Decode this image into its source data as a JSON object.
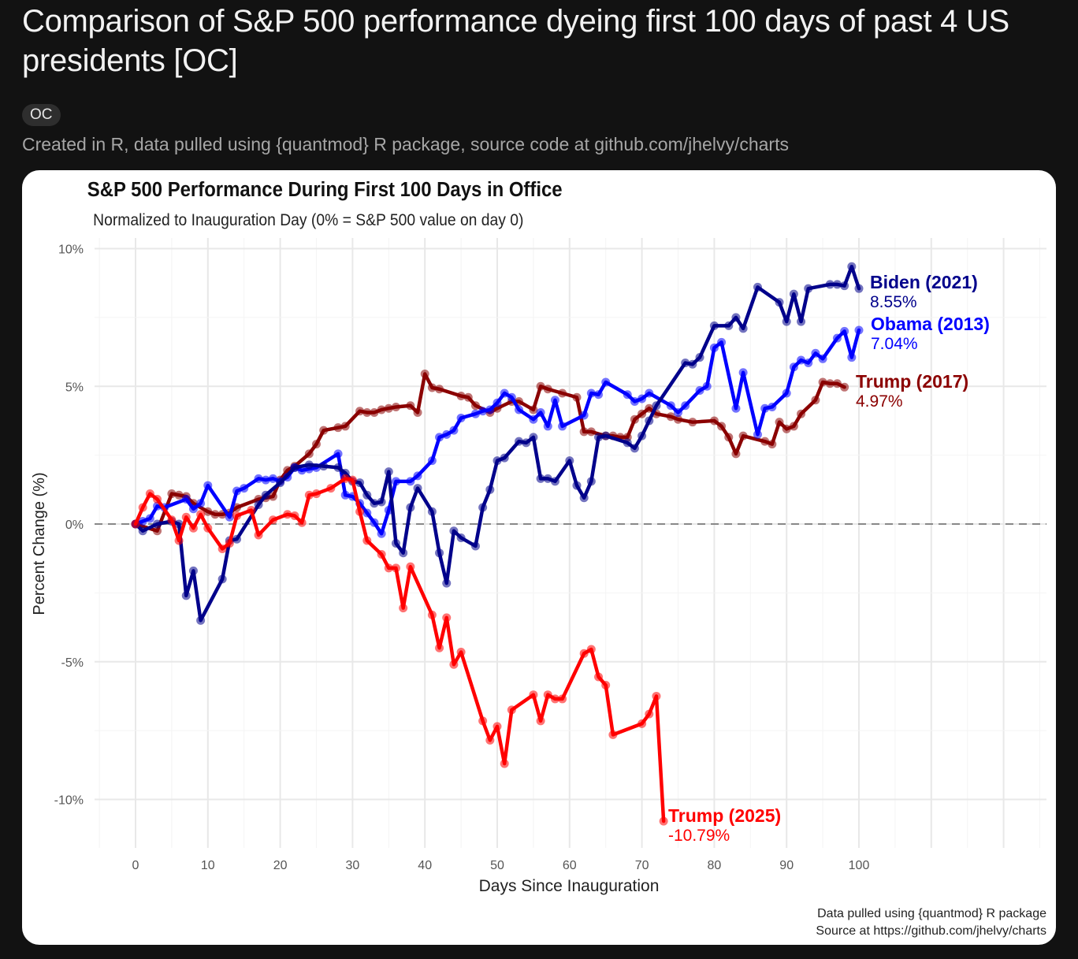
{
  "post": {
    "title": "Comparison of S&P 500 performance dyeing first 100 days of past 4 US presidents [OC]",
    "flair": "OC",
    "body": "Created in R, data pulled using {quantmod} R package, source code at github.com/jhelvy/charts"
  },
  "chart_data": {
    "type": "line",
    "title": "S&P 500 Performance During First 100 Days in Office",
    "subtitle": "Normalized to Inauguration Day (0% = S&P 500 value on day 0)",
    "xlabel": "Days Since Inauguration",
    "ylabel": "Percent Change (%)",
    "xlim": [
      0,
      100
    ],
    "ylim": [
      -12,
      10.5
    ],
    "xticks": [
      0,
      10,
      20,
      30,
      40,
      50,
      60,
      70,
      80,
      90,
      100
    ],
    "yticks": [
      {
        "v": 10,
        "label": "10%"
      },
      {
        "v": 5,
        "label": "5%"
      },
      {
        "v": 0,
        "label": "0%"
      },
      {
        "v": -5,
        "label": "-5%"
      },
      {
        "v": -10,
        "label": "-10%"
      }
    ],
    "grid": true,
    "reference_line": 0,
    "caption": [
      "Data pulled using {quantmod} R package",
      "Source at https://github.com/jhelvy/charts"
    ],
    "series": [
      {
        "name": "Trump (2017)",
        "final": "4.97%",
        "color": "#8B0000",
        "x": [
          0,
          3,
          5,
          6,
          7,
          8,
          10,
          11,
          12,
          13,
          14,
          17,
          18,
          19,
          20,
          21,
          22,
          24,
          25,
          26,
          28,
          29,
          31,
          32,
          33,
          34,
          35,
          36,
          38,
          39,
          40,
          41,
          42,
          45,
          46,
          47,
          49,
          50,
          52,
          53,
          55,
          56,
          57,
          59,
          61,
          62,
          63,
          65,
          66,
          67,
          68,
          69,
          70,
          71,
          72,
          74,
          75,
          77,
          80,
          81,
          82,
          83,
          84,
          87,
          88,
          89,
          90,
          91,
          92,
          94,
          95,
          96,
          97,
          98
        ],
        "y": [
          0,
          -0.25,
          1.1,
          1.05,
          1.0,
          0.75,
          0.45,
          0.35,
          0.35,
          0.4,
          0.6,
          0.9,
          0.95,
          1.0,
          1.6,
          1.95,
          2.1,
          2.55,
          2.9,
          3.4,
          3.5,
          3.55,
          4.1,
          4.05,
          4.05,
          4.15,
          4.2,
          4.25,
          4.3,
          4.05,
          5.45,
          4.95,
          4.9,
          4.65,
          4.6,
          4.3,
          4.05,
          4.2,
          4.45,
          4.45,
          4.15,
          5.0,
          4.9,
          4.75,
          4.6,
          3.35,
          3.35,
          3.2,
          3.2,
          3.15,
          3.15,
          3.8,
          4.0,
          4.2,
          4.0,
          3.9,
          3.8,
          3.7,
          3.75,
          3.55,
          3.15,
          2.55,
          3.2,
          3.0,
          2.9,
          3.7,
          3.45,
          3.55,
          4.0,
          4.5,
          5.15,
          5.1,
          5.1,
          4.97
        ]
      },
      {
        "name": "Obama (2013)",
        "final": "7.04%",
        "color": "#0000FF",
        "x": [
          0,
          1,
          2,
          3,
          4,
          7,
          8,
          9,
          10,
          13,
          14,
          15,
          17,
          18,
          19,
          20,
          21,
          22,
          23,
          24,
          25,
          28,
          29,
          30,
          31,
          32,
          33,
          34,
          35,
          36,
          38,
          39,
          41,
          42,
          43,
          44,
          45,
          47,
          48,
          49,
          50,
          51,
          52,
          53,
          55,
          56,
          57,
          58,
          59,
          62,
          63,
          64,
          65,
          68,
          69,
          70,
          71,
          74,
          75,
          76,
          78,
          79,
          80,
          81,
          83,
          84,
          86,
          87,
          88,
          90,
          91,
          92,
          93,
          94,
          95,
          97,
          98,
          99,
          100
        ],
        "y": [
          0,
          0.1,
          0.2,
          0.65,
          0.6,
          0.9,
          0.55,
          0.75,
          1.4,
          0.25,
          1.2,
          1.3,
          1.65,
          1.6,
          1.65,
          1.55,
          1.7,
          2.05,
          1.95,
          2.0,
          2.05,
          2.55,
          1.05,
          1.0,
          0.75,
          0.4,
          0.05,
          -0.35,
          0.5,
          1.55,
          1.55,
          1.75,
          2.3,
          3.15,
          3.25,
          3.4,
          3.85,
          4.0,
          4.1,
          4.15,
          4.4,
          4.75,
          4.6,
          4.15,
          3.8,
          4.05,
          3.55,
          4.5,
          3.55,
          3.95,
          4.75,
          4.7,
          5.15,
          4.7,
          4.45,
          4.55,
          4.75,
          4.3,
          4.05,
          4.3,
          4.85,
          5.0,
          6.4,
          6.6,
          4.2,
          5.5,
          3.25,
          4.2,
          4.25,
          4.75,
          5.7,
          5.95,
          5.85,
          6.2,
          6.0,
          6.75,
          7.0,
          6.05,
          7.04
        ]
      },
      {
        "name": "Biden (2021)",
        "final": "8.55%",
        "color": "#00008B",
        "x": [
          0,
          1,
          3,
          5,
          6,
          7,
          8,
          9,
          12,
          13,
          14,
          17,
          18,
          20,
          22,
          24,
          26,
          28,
          29,
          30,
          31,
          32,
          33,
          34,
          35,
          36,
          37,
          38,
          39,
          41,
          42,
          43,
          44,
          45,
          47,
          48,
          49,
          50,
          51,
          53,
          54,
          55,
          56,
          57,
          58,
          60,
          61,
          62,
          63,
          64,
          65,
          68,
          69,
          70,
          71,
          72,
          76,
          77,
          78,
          80,
          82,
          83,
          84,
          86,
          89,
          90,
          91,
          92,
          93,
          96,
          97,
          98,
          99,
          100
        ],
        "y": [
          0,
          -0.25,
          0,
          0.1,
          0.0,
          -2.6,
          -1.7,
          -3.5,
          -2.0,
          -0.6,
          -0.55,
          0.7,
          1.05,
          1.5,
          2.05,
          2.15,
          2.1,
          2.05,
          1.85,
          1.55,
          1.5,
          1.05,
          0.75,
          0.8,
          1.9,
          -0.7,
          -1.05,
          0.6,
          1.3,
          0.45,
          -1.05,
          -2.15,
          -0.25,
          -0.5,
          -0.8,
          0.6,
          1.25,
          2.3,
          2.4,
          3.0,
          2.95,
          3.15,
          1.65,
          1.65,
          1.55,
          2.3,
          1.4,
          0.95,
          1.55,
          3.15,
          3.2,
          2.95,
          2.75,
          3.2,
          3.75,
          4.3,
          5.85,
          5.8,
          6.05,
          7.2,
          7.2,
          7.5,
          7.1,
          8.6,
          8.05,
          7.35,
          8.35,
          7.35,
          8.55,
          8.7,
          8.7,
          8.65,
          9.35,
          8.55
        ]
      },
      {
        "name": "Trump (2025)",
        "final": "-10.79%",
        "color": "#FF0000",
        "x": [
          0,
          1,
          2,
          3,
          5,
          6,
          7,
          8,
          9,
          10,
          12,
          13,
          14,
          16,
          17,
          19,
          21,
          22,
          23,
          24,
          25,
          27,
          29,
          30,
          31,
          32,
          34,
          35,
          36,
          37,
          38,
          41,
          42,
          43,
          44,
          45,
          48,
          49,
          50,
          51,
          52,
          55,
          56,
          57,
          58,
          59,
          62,
          63,
          64,
          65,
          66,
          70,
          71,
          72,
          73
        ],
        "y": [
          0,
          0.6,
          1.1,
          0.9,
          0.15,
          -0.6,
          0.25,
          -0.15,
          0.35,
          -0.15,
          -0.9,
          -0.7,
          0.3,
          0.5,
          -0.4,
          0.15,
          0.35,
          0.3,
          0.05,
          1.05,
          1.1,
          1.3,
          1.65,
          1.6,
          0.45,
          -0.6,
          -1.1,
          -1.6,
          -1.6,
          -3.05,
          -1.55,
          -3.3,
          -4.5,
          -3.4,
          -5.1,
          -4.65,
          -7.15,
          -7.85,
          -7.35,
          -8.7,
          -6.75,
          -6.2,
          -7.15,
          -6.2,
          -6.35,
          -6.35,
          -4.7,
          -4.55,
          -5.55,
          -5.85,
          -7.65,
          -7.25,
          -6.9,
          -6.25,
          -10.79
        ]
      }
    ]
  }
}
